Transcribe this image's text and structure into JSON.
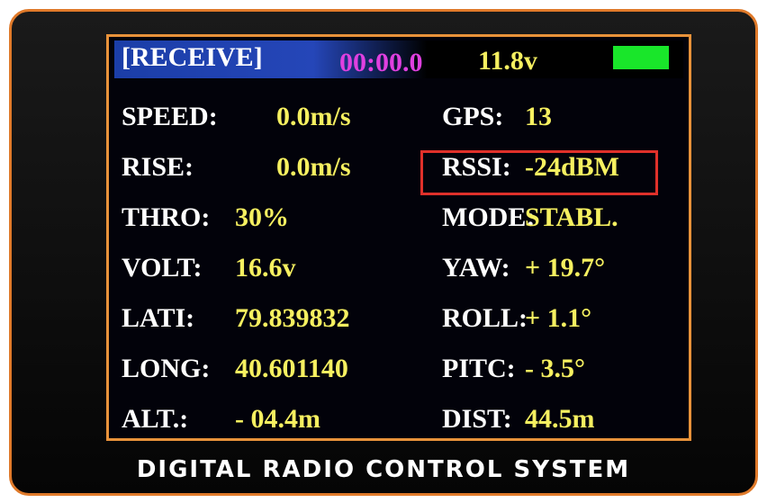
{
  "header": {
    "mode": "[RECEIVE]",
    "timer": "00:00.0",
    "voltage": "11.8v"
  },
  "rows": [
    {
      "left": {
        "label": "SPEED:",
        "value": "0.0m/s"
      },
      "right": {
        "label": "GPS:",
        "value": "13"
      }
    },
    {
      "left": {
        "label": "RISE:",
        "value": "0.0m/s"
      },
      "right": {
        "label": "RSSI:",
        "value": "-24dBM"
      }
    },
    {
      "left": {
        "label": "THRO:",
        "value": "30%"
      },
      "right": {
        "label": "MODE:",
        "value": "STABL."
      }
    },
    {
      "left": {
        "label": "VOLT:",
        "value": "16.6v"
      },
      "right": {
        "label": "YAW:",
        "value": "+ 19.7°"
      }
    },
    {
      "left": {
        "label": "LATI:",
        "value": "79.839832"
      },
      "right": {
        "label": "ROLL:",
        "value": "+ 1.1°"
      }
    },
    {
      "left": {
        "label": "LONG:",
        "value": "40.601140"
      },
      "right": {
        "label": "PITC:",
        "value": "- 3.5°"
      }
    },
    {
      "left": {
        "label": "ALT.:",
        "value": "- 04.4m"
      },
      "right": {
        "label": "DIST:",
        "value": "44.5m"
      }
    }
  ],
  "footer": "DIGITAL RADIO CONTROL SYSTEM"
}
